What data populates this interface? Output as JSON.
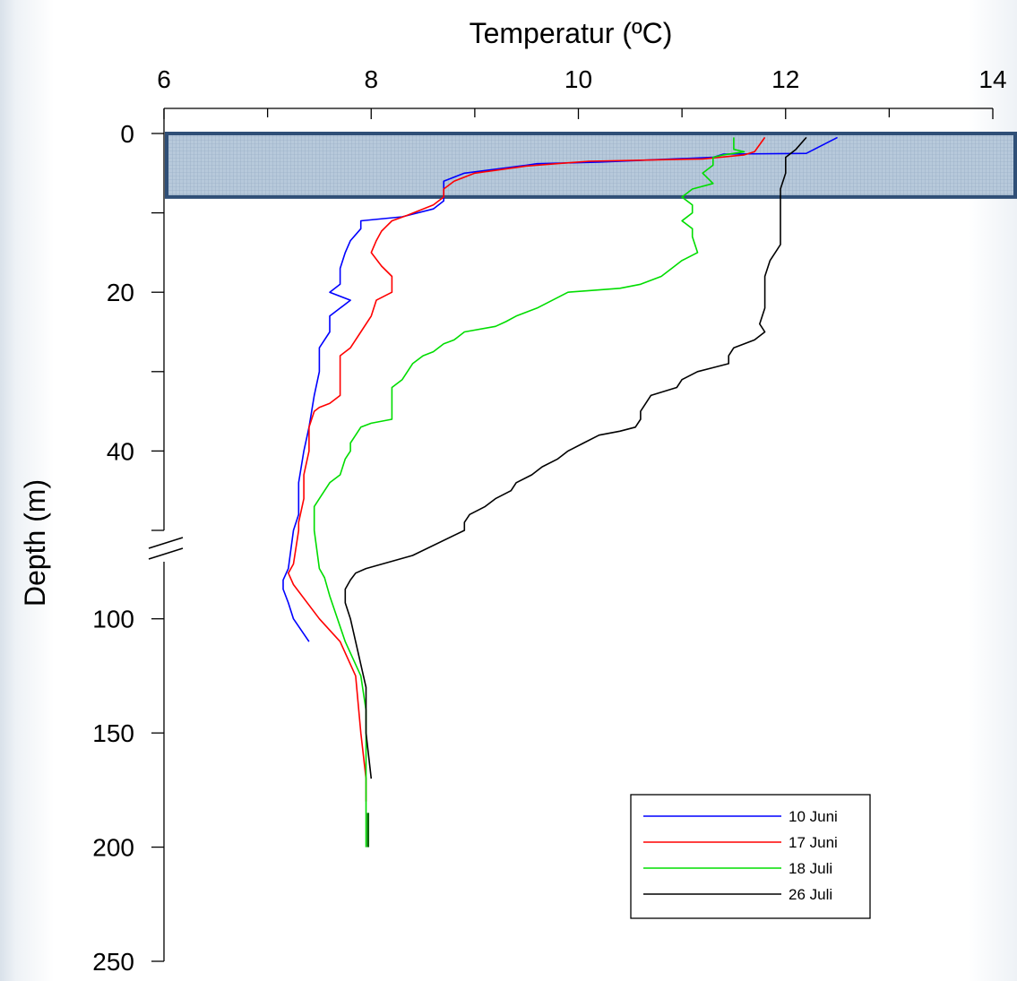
{
  "chart_data": {
    "type": "line",
    "xlabel": "Temperatur (ºC)",
    "ylabel": "Depth (m)",
    "xlim": [
      6,
      14
    ],
    "x_ticks": [
      6,
      8,
      10,
      12,
      14
    ],
    "ylim": [
      0,
      250
    ],
    "y_axis_broken": true,
    "y_upper_segment": [
      0,
      50
    ],
    "y_lower_segment": [
      75,
      250
    ],
    "y_ticks_upper": [
      0,
      20,
      40
    ],
    "y_ticks_lower": [
      100,
      150,
      200,
      250
    ],
    "highlight_band": {
      "y_from": 0,
      "y_to": 8,
      "color": "#a9bfd4"
    },
    "legend_position": "bottom-right",
    "series": [
      {
        "name": "10 Juni",
        "color": "#0000ff",
        "points": [
          [
            12.5,
            0.5
          ],
          [
            12.2,
            2.5
          ],
          [
            11.4,
            2.6
          ],
          [
            11.3,
            3
          ],
          [
            10.2,
            3.6
          ],
          [
            9.6,
            3.8
          ],
          [
            9.5,
            4
          ],
          [
            8.9,
            5
          ],
          [
            8.7,
            6
          ],
          [
            8.7,
            7
          ],
          [
            8.7,
            8.5
          ],
          [
            8.6,
            9.5
          ],
          [
            8.3,
            10.5
          ],
          [
            7.9,
            11
          ],
          [
            7.9,
            12
          ],
          [
            7.8,
            13.5
          ],
          [
            7.75,
            15
          ],
          [
            7.7,
            17
          ],
          [
            7.7,
            19
          ],
          [
            7.6,
            20
          ],
          [
            7.8,
            21
          ],
          [
            7.7,
            22
          ],
          [
            7.6,
            23
          ],
          [
            7.6,
            25
          ],
          [
            7.5,
            27
          ],
          [
            7.5,
            30
          ],
          [
            7.45,
            33
          ],
          [
            7.4,
            37
          ],
          [
            7.35,
            40
          ],
          [
            7.3,
            44
          ],
          [
            7.3,
            48
          ],
          [
            7.25,
            50
          ],
          [
            7.2,
            78
          ],
          [
            7.15,
            83
          ],
          [
            7.15,
            87
          ],
          [
            7.2,
            93
          ],
          [
            7.25,
            100
          ],
          [
            7.4,
            110
          ]
        ]
      },
      {
        "name": "17 Juni",
        "color": "#ff0000",
        "points": [
          [
            11.8,
            0.5
          ],
          [
            11.7,
            2.3
          ],
          [
            11.6,
            2.7
          ],
          [
            11.2,
            3.2
          ],
          [
            10.1,
            3.5
          ],
          [
            9.5,
            4.1
          ],
          [
            9.0,
            5
          ],
          [
            8.8,
            6
          ],
          [
            8.7,
            7
          ],
          [
            8.7,
            8
          ],
          [
            8.6,
            9
          ],
          [
            8.35,
            10.3
          ],
          [
            8.2,
            11
          ],
          [
            8.1,
            12.3
          ],
          [
            8.05,
            13.5
          ],
          [
            8.0,
            15
          ],
          [
            8.1,
            16.7
          ],
          [
            8.2,
            18
          ],
          [
            8.2,
            20
          ],
          [
            8.05,
            21
          ],
          [
            8.0,
            23
          ],
          [
            7.9,
            25
          ],
          [
            7.8,
            27
          ],
          [
            7.7,
            28
          ],
          [
            7.7,
            30
          ],
          [
            7.7,
            33
          ],
          [
            7.6,
            34
          ],
          [
            7.5,
            34.5
          ],
          [
            7.45,
            35
          ],
          [
            7.4,
            37
          ],
          [
            7.4,
            40
          ],
          [
            7.35,
            43
          ],
          [
            7.35,
            46
          ],
          [
            7.3,
            49
          ],
          [
            7.3,
            50
          ],
          [
            7.25,
            76
          ],
          [
            7.2,
            80
          ],
          [
            7.25,
            85
          ],
          [
            7.5,
            100
          ],
          [
            7.7,
            110
          ],
          [
            7.85,
            125
          ],
          [
            7.9,
            150
          ],
          [
            7.95,
            170
          ],
          [
            7.95,
            180
          ]
        ]
      },
      {
        "name": "18 Juli",
        "color": "#00dd00",
        "points": [
          [
            11.5,
            0.5
          ],
          [
            11.5,
            2
          ],
          [
            11.6,
            2.3
          ],
          [
            11.4,
            2.7
          ],
          [
            11.3,
            3
          ],
          [
            11.3,
            4
          ],
          [
            11.2,
            5
          ],
          [
            11.3,
            6.3
          ],
          [
            11.1,
            7
          ],
          [
            11.0,
            8
          ],
          [
            11.1,
            9
          ],
          [
            11.1,
            10
          ],
          [
            11.0,
            11
          ],
          [
            11.1,
            12
          ],
          [
            11.1,
            13
          ],
          [
            11.15,
            15
          ],
          [
            11.0,
            16
          ],
          [
            10.9,
            17
          ],
          [
            10.8,
            18
          ],
          [
            10.6,
            19
          ],
          [
            10.4,
            19.5
          ],
          [
            10.1,
            19.8
          ],
          [
            9.9,
            20
          ],
          [
            9.6,
            22
          ],
          [
            9.4,
            23
          ],
          [
            9.3,
            23.7
          ],
          [
            9.2,
            24.3
          ],
          [
            8.9,
            25
          ],
          [
            8.8,
            26
          ],
          [
            8.7,
            26.5
          ],
          [
            8.6,
            27.5
          ],
          [
            8.5,
            28
          ],
          [
            8.4,
            29
          ],
          [
            8.35,
            30
          ],
          [
            8.3,
            31
          ],
          [
            8.2,
            32
          ],
          [
            8.2,
            35
          ],
          [
            8.2,
            36
          ],
          [
            8.0,
            36.5
          ],
          [
            7.9,
            37
          ],
          [
            7.85,
            38
          ],
          [
            7.8,
            39
          ],
          [
            7.8,
            40
          ],
          [
            7.75,
            41
          ],
          [
            7.7,
            43
          ],
          [
            7.6,
            44
          ],
          [
            7.55,
            45
          ],
          [
            7.5,
            46
          ],
          [
            7.45,
            47
          ],
          [
            7.45,
            50
          ],
          [
            7.5,
            78
          ],
          [
            7.55,
            82
          ],
          [
            7.6,
            90
          ],
          [
            7.75,
            110
          ],
          [
            7.9,
            125
          ],
          [
            7.95,
            140
          ],
          [
            7.95,
            160
          ],
          [
            7.95,
            185
          ],
          [
            7.95,
            200
          ]
        ]
      },
      {
        "name": "26 Juli",
        "color": "#000000",
        "points": [
          [
            12.2,
            0.5
          ],
          [
            12.1,
            2
          ],
          [
            12.05,
            2.5
          ],
          [
            12.0,
            3
          ],
          [
            12.0,
            5
          ],
          [
            11.95,
            7
          ],
          [
            11.95,
            10
          ],
          [
            11.95,
            12
          ],
          [
            11.95,
            14
          ],
          [
            11.9,
            15
          ],
          [
            11.85,
            16
          ],
          [
            11.8,
            18
          ],
          [
            11.8,
            20
          ],
          [
            11.8,
            22
          ],
          [
            11.75,
            24
          ],
          [
            11.8,
            25
          ],
          [
            11.7,
            26
          ],
          [
            11.5,
            27
          ],
          [
            11.45,
            28
          ],
          [
            11.45,
            29
          ],
          [
            11.3,
            29.5
          ],
          [
            11.15,
            30
          ],
          [
            11.0,
            31
          ],
          [
            10.95,
            32
          ],
          [
            10.7,
            33
          ],
          [
            10.65,
            34
          ],
          [
            10.6,
            35
          ],
          [
            10.6,
            36
          ],
          [
            10.55,
            37
          ],
          [
            10.4,
            37.5
          ],
          [
            10.2,
            38
          ],
          [
            10.05,
            39
          ],
          [
            9.9,
            40
          ],
          [
            9.8,
            41
          ],
          [
            9.65,
            42
          ],
          [
            9.55,
            43
          ],
          [
            9.4,
            44
          ],
          [
            9.35,
            45
          ],
          [
            9.2,
            46
          ],
          [
            9.1,
            47
          ],
          [
            8.95,
            48
          ],
          [
            8.9,
            49
          ],
          [
            8.9,
            50
          ],
          [
            8.4,
            70
          ],
          [
            7.95,
            78
          ],
          [
            7.85,
            80
          ],
          [
            7.8,
            83
          ],
          [
            7.75,
            87
          ],
          [
            7.75,
            93
          ],
          [
            7.8,
            100
          ],
          [
            7.85,
            110
          ],
          [
            7.95,
            130
          ],
          [
            7.95,
            150
          ],
          [
            8.0,
            170
          ]
        ]
      }
    ]
  }
}
